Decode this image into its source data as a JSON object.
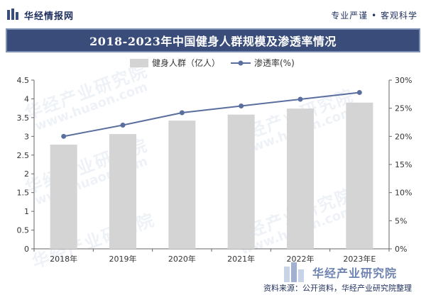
{
  "header": {
    "site_name": "华经情报网",
    "slogan": "专业严谨 • 客观科学"
  },
  "colors": {
    "title_bg": "#3a4d7a",
    "bar": "#d4d4d4",
    "line": "#5b6f9e",
    "text": "#1f2f5c"
  },
  "watermark": {
    "text": "华经产业研究院",
    "url": "www.huaon.com"
  },
  "footer": {
    "brand": "华经产业研究院",
    "source": "资料来源：公开资料，华经产业研究院整理"
  },
  "chart_data": {
    "type": "bar+line",
    "title": "2018-2023年中国健身人群规模及渗透率情况",
    "categories": [
      "2018年",
      "2019年",
      "2020年",
      "2021年",
      "2022年",
      "2023年E"
    ],
    "series": [
      {
        "name": "健身人群（亿人）",
        "type": "bar",
        "axis": "left",
        "values": [
          2.78,
          3.06,
          3.42,
          3.58,
          3.74,
          3.9
        ]
      },
      {
        "name": "渗透率(%)",
        "type": "line",
        "axis": "right",
        "values": [
          20.0,
          22.0,
          24.2,
          25.4,
          26.6,
          27.8
        ]
      }
    ],
    "y_left": {
      "min": 0,
      "max": 4.5,
      "ticks": [
        "0",
        "0.5",
        "1",
        "1.5",
        "2",
        "2.5",
        "3",
        "3.5",
        "4",
        "4.5"
      ]
    },
    "y_right": {
      "min": 0,
      "max": 30,
      "ticks": [
        "0%",
        "5%",
        "10%",
        "15%",
        "20%",
        "25%",
        "30%"
      ]
    },
    "legend_position": "top-center",
    "grid": false
  }
}
